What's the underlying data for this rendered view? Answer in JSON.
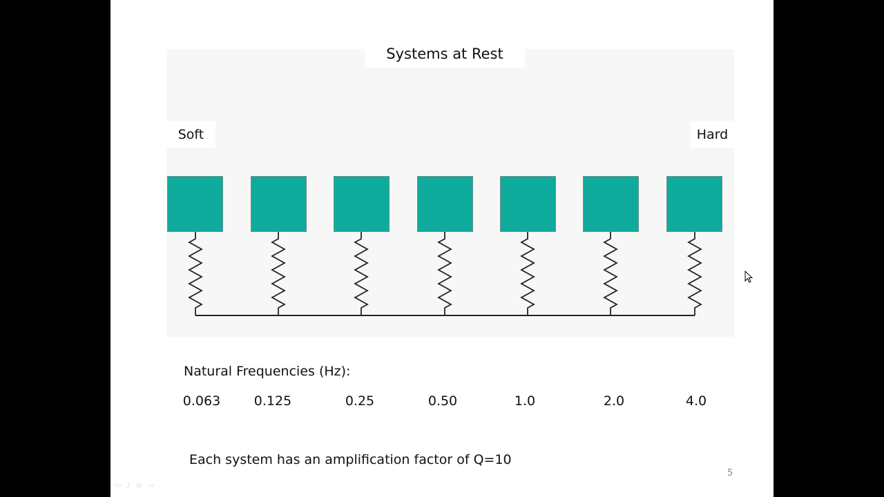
{
  "slide": {
    "title": "Systems at Rest",
    "soft_label": "Soft",
    "hard_label": "Hard",
    "frequencies_heading": "Natural Frequencies (Hz):",
    "frequencies": [
      "0.063",
      "0.125",
      "0.25",
      "0.50",
      "1.0",
      "2.0",
      "4.0"
    ],
    "note": "Each system has an amplification factor of Q=10",
    "page_number": "5"
  },
  "colors": {
    "mass": "#0fab9d",
    "spring": "#222222",
    "panel": "#f7f7f7"
  },
  "controls": {
    "prev_icon": "⇦",
    "pen_icon": "∕",
    "menu_icon": "≡",
    "next_icon": "⇨"
  }
}
